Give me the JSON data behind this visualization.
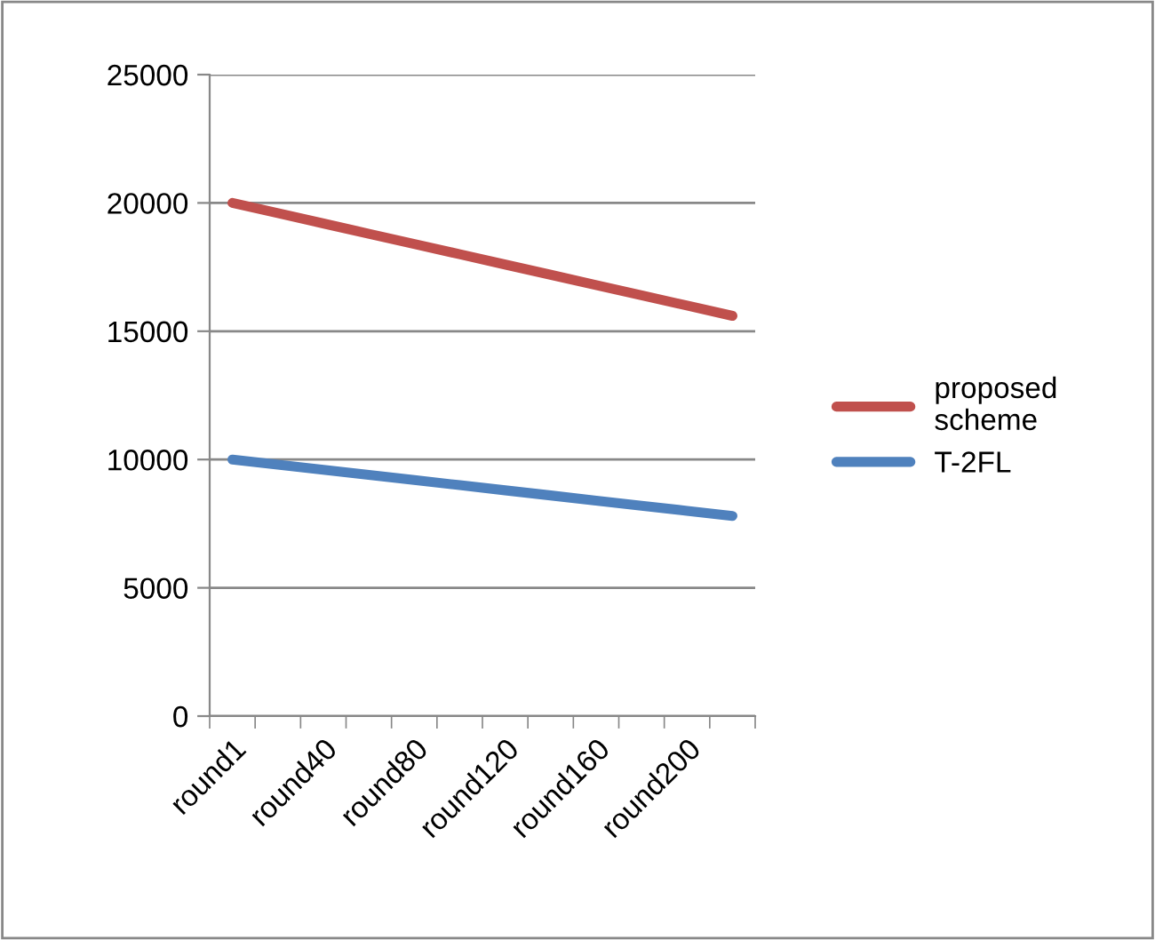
{
  "chart_data": {
    "type": "line",
    "categories": [
      "round1",
      null,
      "round40",
      null,
      "round80",
      null,
      "round120",
      null,
      "round160",
      null,
      "round200",
      null
    ],
    "series": [
      {
        "name": "proposed scheme",
        "color": "#c0504d",
        "values": [
          20000,
          19600,
          19200,
          18800,
          18400,
          18000,
          17600,
          17200,
          16800,
          16400,
          16000,
          15600
        ]
      },
      {
        "name": "T-2FL",
        "color": "#4f81bd",
        "values": [
          10000,
          9800,
          9600,
          9400,
          9200,
          9000,
          8800,
          8600,
          8400,
          8200,
          8000,
          7800
        ]
      }
    ],
    "ylim": [
      0,
      25000
    ],
    "yticks": [
      0,
      5000,
      10000,
      15000,
      20000,
      25000
    ],
    "grid": "y",
    "legend": "right",
    "marker": "none",
    "line_style": "solid"
  }
}
